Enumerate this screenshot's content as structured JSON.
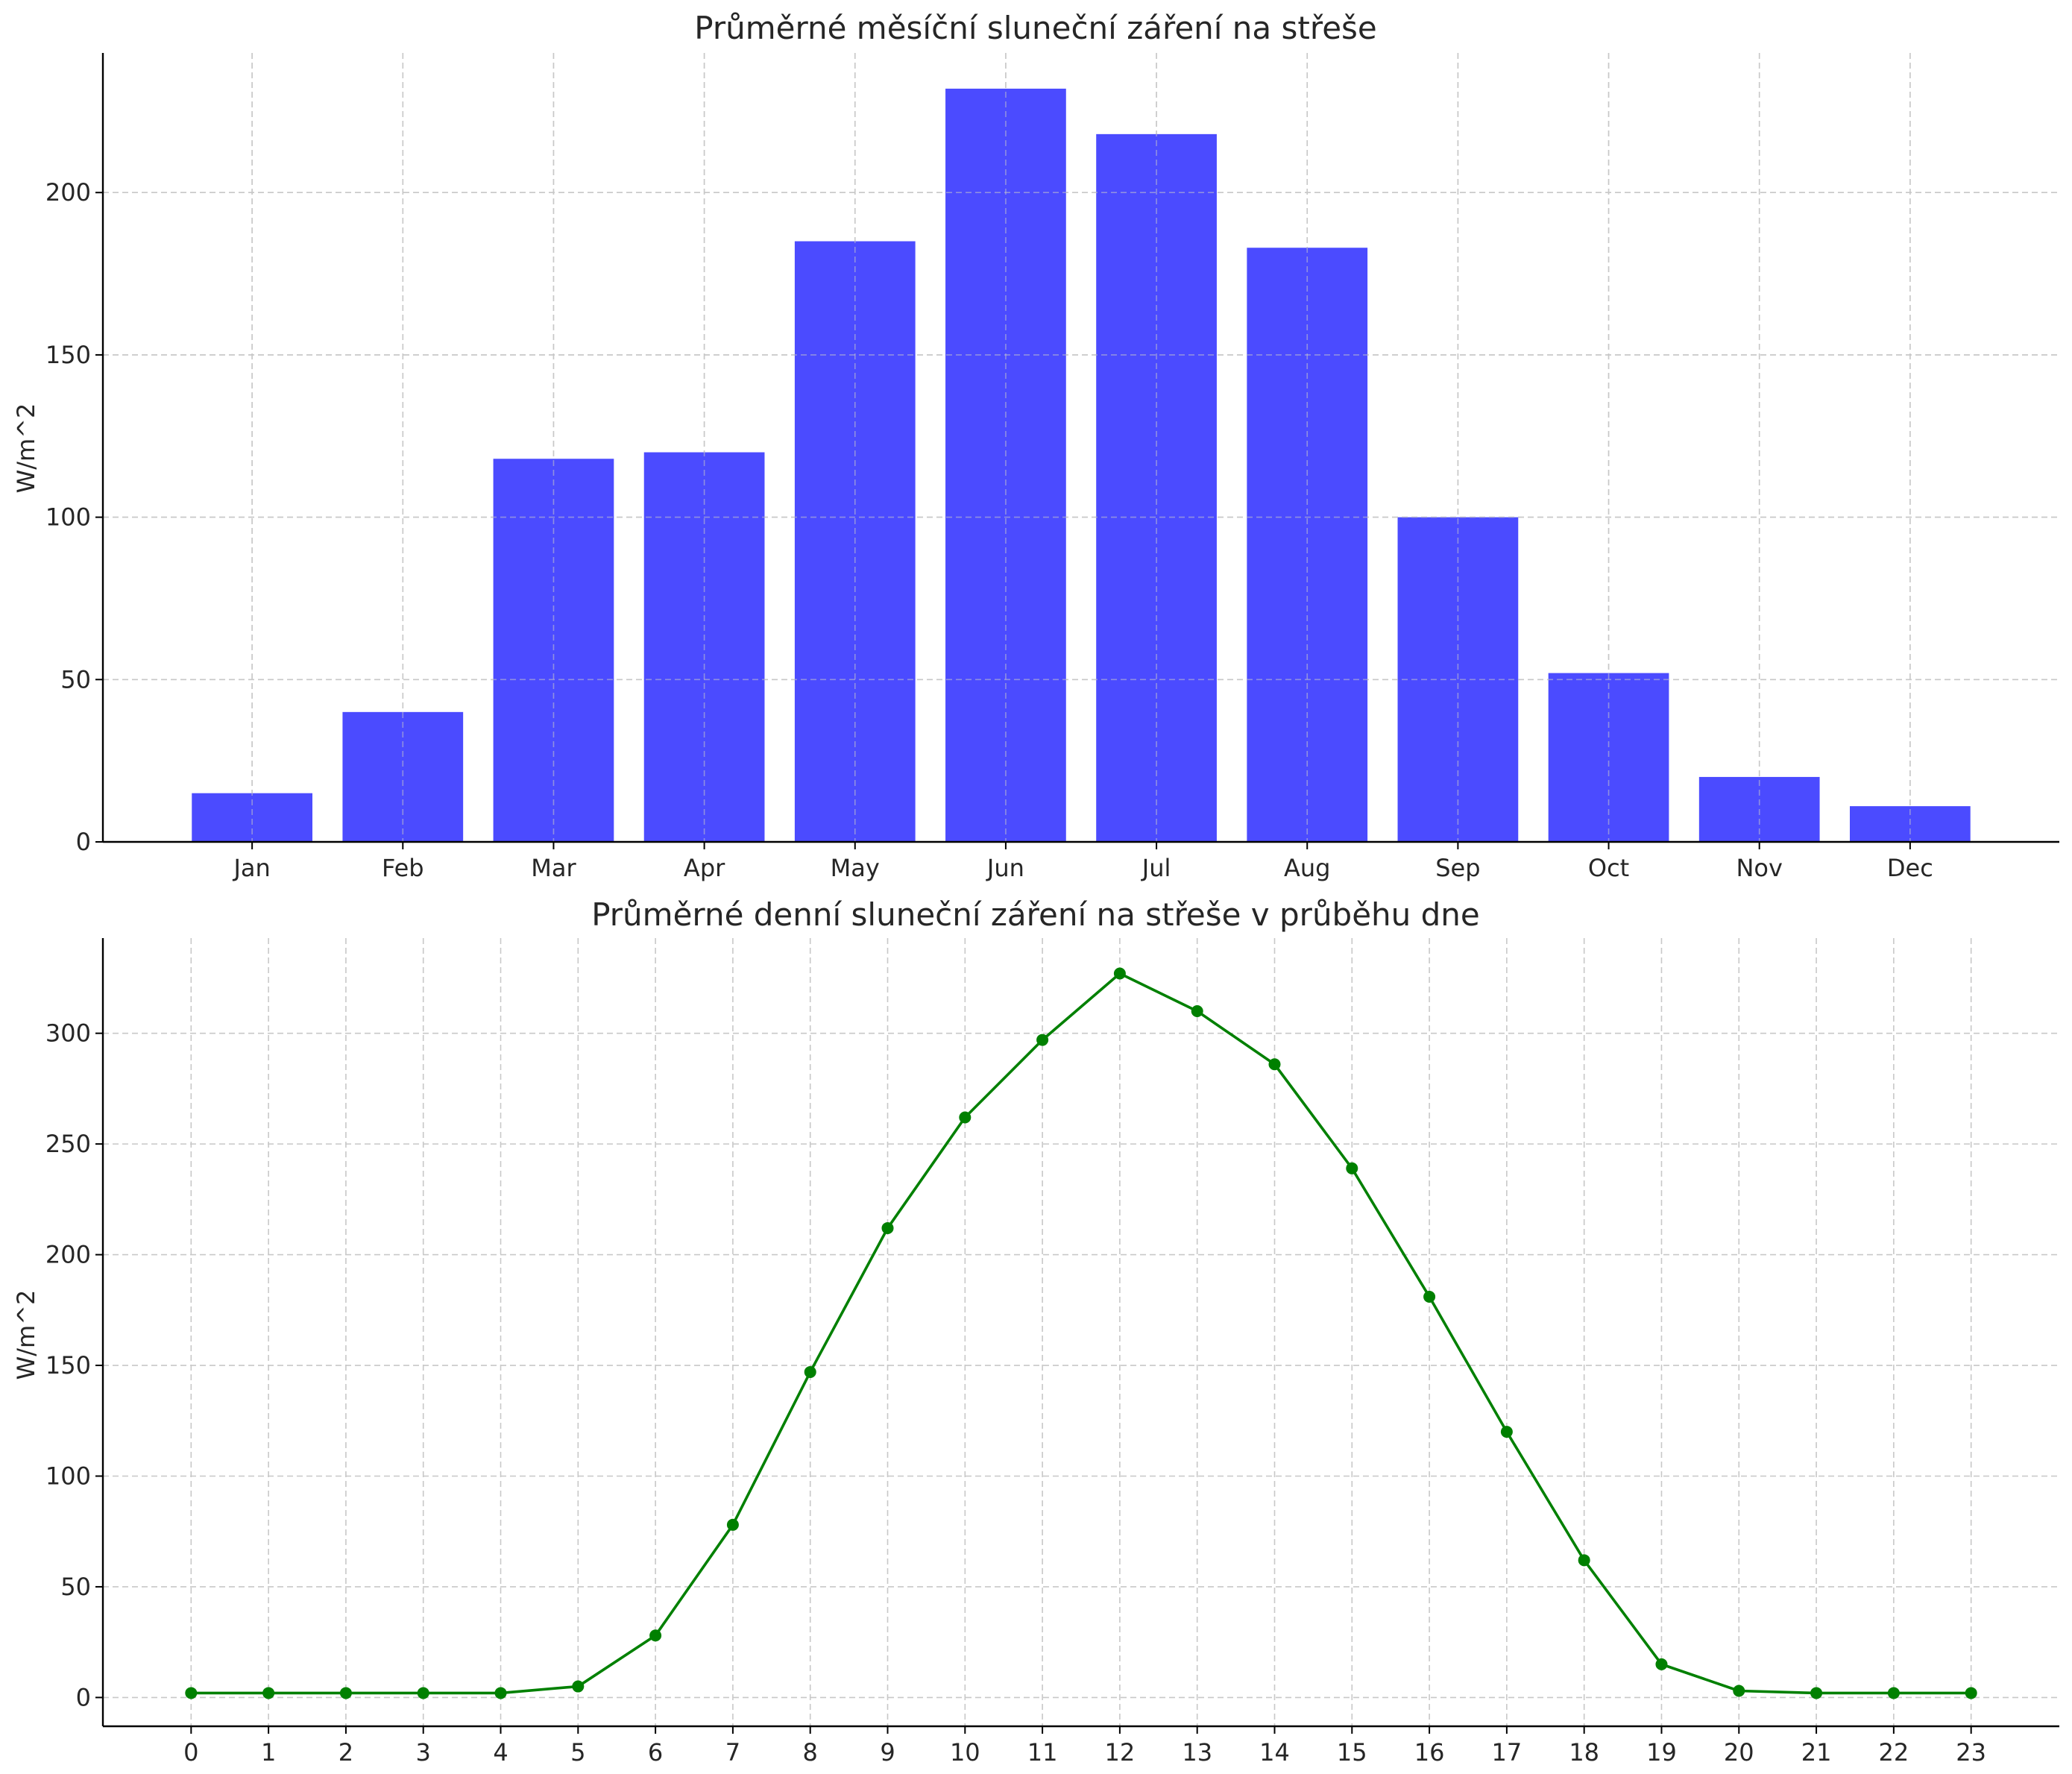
{
  "chart_data": [
    {
      "type": "bar",
      "title": "Průměrné měsíční sluneční záření na střeše",
      "xlabel": "",
      "ylabel": "W/m^2",
      "categories": [
        "Jan",
        "Feb",
        "Mar",
        "Apr",
        "May",
        "Jun",
        "Jul",
        "Aug",
        "Sep",
        "Oct",
        "Nov",
        "Dec"
      ],
      "values": [
        15,
        40,
        118,
        120,
        185,
        232,
        218,
        183,
        100,
        52,
        20,
        11
      ],
      "yticks": [
        0,
        50,
        100,
        150,
        200
      ],
      "ylim": [
        0,
        243
      ],
      "grid": true,
      "color": "#4b4bff"
    },
    {
      "type": "line",
      "title": "Průměrné denní sluneční záření na střeše v průběhu dne",
      "xlabel": "",
      "ylabel": "W/m^2",
      "x": [
        0,
        1,
        2,
        3,
        4,
        5,
        6,
        7,
        8,
        9,
        10,
        11,
        12,
        13,
        14,
        15,
        16,
        17,
        18,
        19,
        20,
        21,
        22,
        23
      ],
      "values": [
        2,
        2,
        2,
        2,
        2,
        5,
        28,
        78,
        147,
        212,
        262,
        297,
        327,
        310,
        286,
        239,
        181,
        120,
        62,
        15,
        3,
        2,
        2,
        2
      ],
      "yticks": [
        0,
        50,
        100,
        150,
        200,
        250,
        300
      ],
      "xlim": [
        -1.14,
        24.14
      ],
      "ylim": [
        -13,
        343
      ],
      "grid": true,
      "marker": "circle",
      "color": "#008000"
    }
  ]
}
